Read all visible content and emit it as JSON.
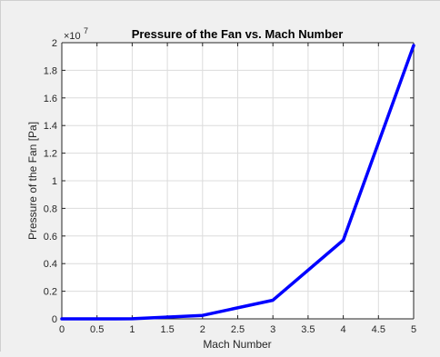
{
  "chart_data": {
    "type": "line",
    "title": "Pressure of the Fan vs. Mach Number",
    "xlabel": "Mach Number",
    "ylabel": "Pressure of the Fan [Pa]",
    "y_multiplier": "×10",
    "y_exponent": "7",
    "x": [
      0,
      1,
      2,
      3,
      4,
      5
    ],
    "series": [
      {
        "values": [
          0.0,
          0.0005,
          0.025,
          0.135,
          0.57,
          1.98
        ],
        "color": "#0000ff"
      }
    ],
    "xlim": [
      0,
      5
    ],
    "ylim": [
      0,
      2
    ],
    "xticks": [
      0,
      0.5,
      1,
      1.5,
      2,
      2.5,
      3,
      3.5,
      4,
      4.5,
      5
    ],
    "xtick_labels": [
      "0",
      "0.5",
      "1",
      "1.5",
      "2",
      "2.5",
      "3",
      "3.5",
      "4",
      "4.5",
      "5"
    ],
    "yticks": [
      0,
      0.2,
      0.4,
      0.6,
      0.8,
      1,
      1.2,
      1.4,
      1.6,
      1.8,
      2
    ],
    "ytick_labels": [
      "0",
      "0.2",
      "0.4",
      "0.6",
      "0.8",
      "1",
      "1.2",
      "1.4",
      "1.6",
      "1.8",
      "2"
    ],
    "grid": true,
    "background": "#ffffff",
    "figure_background": "#f0f0f0"
  }
}
